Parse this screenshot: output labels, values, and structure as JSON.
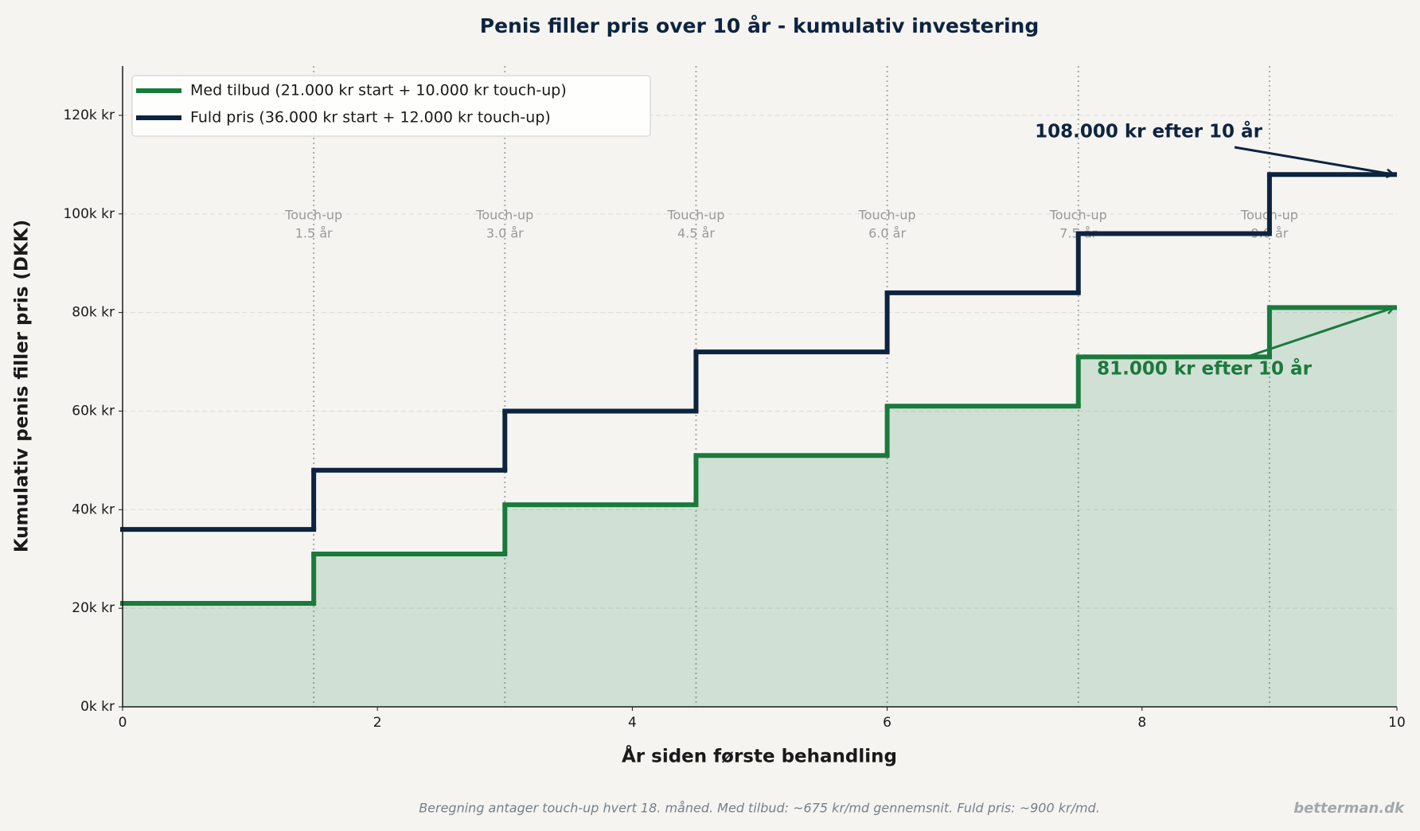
{
  "chart_data": {
    "type": "step",
    "title": "Penis filler pris over 10 år - kumulativ investering",
    "xlabel": "År siden første behandling",
    "ylabel": "Kumulativ penis filler pris (DKK)",
    "x": [
      0,
      1.5,
      3,
      4.5,
      6,
      7.5,
      9
    ],
    "series": [
      {
        "name": "Med tilbud (21.000 kr start + 10.000 kr touch-up)",
        "color": "#1a7a3c",
        "fill": true,
        "values": [
          21000,
          31000,
          41000,
          51000,
          61000,
          71000,
          81000
        ]
      },
      {
        "name": "Fuld pris (36.000 kr start + 12.000 kr touch-up)",
        "color": "#0d2440",
        "fill": false,
        "values": [
          36000,
          48000,
          60000,
          72000,
          84000,
          96000,
          108000
        ]
      }
    ],
    "xlim": [
      0,
      10
    ],
    "xticks": [
      0,
      2,
      4,
      6,
      8,
      10
    ],
    "ylim": [
      0,
      130000
    ],
    "yticks": [
      {
        "value": 0,
        "label": "0k kr"
      },
      {
        "value": 20000,
        "label": "20k kr"
      },
      {
        "value": 40000,
        "label": "40k kr"
      },
      {
        "value": 60000,
        "label": "60k kr"
      },
      {
        "value": 80000,
        "label": "80k kr"
      },
      {
        "value": 100000,
        "label": "100k kr"
      },
      {
        "value": 120000,
        "label": "120k kr"
      }
    ],
    "grid": true,
    "legend": "upper left",
    "touchups": [
      {
        "x": 1.5,
        "label": "Touch-up",
        "sublabel": "1.5 år"
      },
      {
        "x": 3,
        "label": "Touch-up",
        "sublabel": "3.0 år"
      },
      {
        "x": 4.5,
        "label": "Touch-up",
        "sublabel": "4.5 år"
      },
      {
        "x": 6,
        "label": "Touch-up",
        "sublabel": "6.0 år"
      },
      {
        "x": 7.5,
        "label": "Touch-up",
        "sublabel": "7.5 år"
      },
      {
        "x": 9,
        "label": "Touch-up",
        "sublabel": "9.0 år"
      }
    ],
    "annotations": [
      {
        "text": "108.000 kr efter 10 år",
        "x": 10,
        "y": 108000,
        "series": 1
      },
      {
        "text": "81.000 kr efter 10 år",
        "x": 10,
        "y": 81000,
        "series": 0
      }
    ],
    "footnote": "Beregning antager touch-up hvert 18. måned. Med tilbud: ~675 kr/md gennemsnit. Fuld pris: ~900 kr/md.",
    "watermark": "betterman.dk"
  }
}
